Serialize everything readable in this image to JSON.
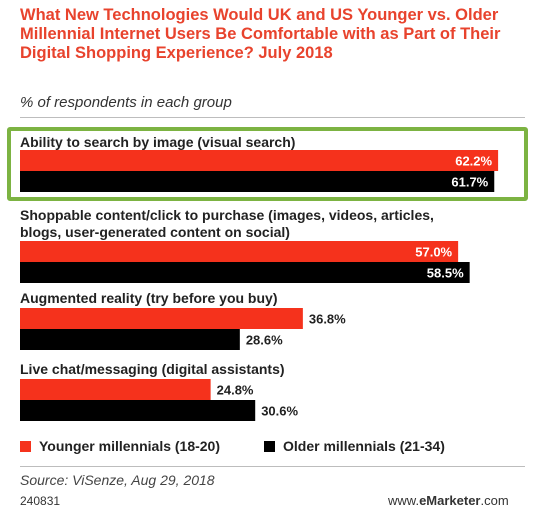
{
  "title": "What New Technologies Would UK and US Younger vs. Older Millennial Internet Users Be Comfortable with as Part of Their Digital Shopping Experience? July 2018",
  "subtitle": "% of respondents in each group",
  "source": "Source: ViSenze, Aug 29, 2018",
  "chart_id": "240831",
  "brand": {
    "prefix": "www.",
    "name": "eMarketer",
    "suffix": ".com"
  },
  "colors": {
    "younger": "#f5321c",
    "older": "#000000",
    "title": "#e8432d",
    "highlight": "#7cb342"
  },
  "chart_data": {
    "type": "bar",
    "orientation": "horizontal",
    "categories": [
      "Ability to search by image (visual search)",
      "Shoppable content/click to purchase (images, videos, articles, blogs, user-generated content on social)",
      "Augmented reality (try before you buy)",
      "Live chat/messaging (digital assistants)"
    ],
    "series": [
      {
        "name": "Younger millennials (18-20)",
        "values": [
          62.2,
          57.0,
          36.8,
          24.8
        ]
      },
      {
        "name": "Older millennials (21-34)",
        "values": [
          61.7,
          58.5,
          28.6,
          30.6
        ]
      }
    ],
    "value_labels": [
      [
        "62.2%",
        "57.0%",
        "36.8%",
        "24.8%"
      ],
      [
        "61.7%",
        "58.5%",
        "28.6%",
        "30.6%"
      ]
    ],
    "title": "What New Technologies Would UK and US Younger vs. Older Millennial Internet Users Be Comfortable with as Part of Their Digital Shopping Experience? July 2018",
    "subtitle": "% of respondents in each group",
    "xlim": [
      0,
      67
    ],
    "grid": false,
    "legend": "bottom",
    "highlighted_category": "Ability to search by image (visual search)"
  }
}
